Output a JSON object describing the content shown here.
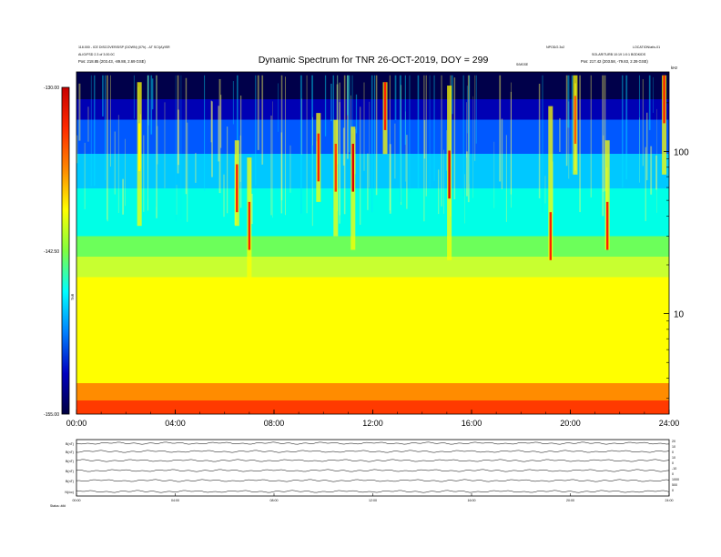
{
  "header": {
    "title": "Dynamic Spectrum for TNR 26-OCT-2019, DOY = 299",
    "left_line1": "118.000 - ICE DISCOVER/DSP (DOWN) (07h) - ΔT SCI(A)/ISR",
    "left_line2": "ALIG/FSD 2.3 of 3.00.0C",
    "left_line3": "Pos:  218.85 (203.43, -89.88, 2.69 GSE)",
    "right_mid": "NPOD/2.3x2",
    "right_top": "LOCATION/at/s-01",
    "right_line2": "SOLAR/TURB  10:19  1:0:1 BODKIDS",
    "right_line3": "Pos:  217.42 (203.58, -79.83, 2.39 GSE)",
    "center_small": "S/MGSE",
    "right_corner": "kHz"
  },
  "chart_data": {
    "type": "heatmap",
    "title": "Dynamic Spectrum for TNR 26-OCT-2019, DOY = 299",
    "x_tick_labels": [
      "00:00",
      "04:00",
      "08:00",
      "12:00",
      "16:00",
      "20:00",
      "24:00"
    ],
    "x_range_hours": [
      0,
      24
    ],
    "y_tick_labels": [
      "100",
      "10"
    ],
    "y_scale": "log",
    "colorbar": {
      "labels": [
        "-130.00",
        "-142.50",
        "-155.00"
      ],
      "axis_label": "TNR",
      "colors": [
        "#c80000",
        "#ff2a00",
        "#ff8800",
        "#ffff00",
        "#80ff40",
        "#00ffff",
        "#0080ff",
        "#0000c0",
        "#000040"
      ]
    },
    "background_bands": [
      {
        "color": "#ff3a00",
        "to": 0.04
      },
      {
        "color": "#ff8c00",
        "to": 0.09
      },
      {
        "color": "#ffff00",
        "to": 0.4
      },
      {
        "color": "#c8ff30",
        "to": 0.46
      },
      {
        "color": "#6cff5a",
        "to": 0.52
      },
      {
        "color": "#00ffe6",
        "to": 0.66
      },
      {
        "color": "#00c8ff",
        "to": 0.76
      },
      {
        "color": "#0058ff",
        "to": 0.86
      },
      {
        "color": "#0000b4",
        "to": 0.92
      },
      {
        "color": "#00004a",
        "to": 1.0
      }
    ],
    "bursts": [
      {
        "t": 2.55,
        "bot": 0.55,
        "top": 0.97,
        "peak": 0.78,
        "color": "#ffff00"
      },
      {
        "t": 6.5,
        "bot": 0.55,
        "top": 0.8,
        "peak": 0.66,
        "color": "#ff2000"
      },
      {
        "t": 7.0,
        "bot": 0.4,
        "top": 0.75,
        "peak": 0.55,
        "color": "#ff2000"
      },
      {
        "t": 9.8,
        "bot": 0.62,
        "top": 0.88,
        "peak": 0.75,
        "color": "#ff2000"
      },
      {
        "t": 10.5,
        "bot": 0.52,
        "top": 0.86,
        "peak": 0.72,
        "color": "#ff4000"
      },
      {
        "t": 11.2,
        "bot": 0.48,
        "top": 0.84,
        "peak": 0.72,
        "color": "#e00000"
      },
      {
        "t": 12.5,
        "bot": 0.76,
        "top": 0.97,
        "peak": 0.9,
        "color": "#ff2000"
      },
      {
        "t": 15.1,
        "bot": 0.45,
        "top": 0.96,
        "peak": 0.7,
        "color": "#e00000"
      },
      {
        "t": 19.2,
        "bot": 0.45,
        "top": 0.9,
        "peak": 0.52,
        "color": "#ff2000"
      },
      {
        "t": 20.2,
        "bot": 0.7,
        "top": 0.99,
        "peak": 0.86,
        "color": "#ff6000"
      },
      {
        "t": 21.5,
        "bot": 0.48,
        "top": 0.8,
        "peak": 0.55,
        "color": "#ff2000"
      },
      {
        "t": 23.8,
        "bot": 0.7,
        "top": 0.99,
        "peak": 0.93,
        "color": "#ff2000"
      }
    ]
  },
  "bottom_panel": {
    "row_labels": [
      "B(nT)",
      "B(nT)",
      "B(nT)",
      "B(nT)",
      "B(nT)",
      "N(/cc)"
    ],
    "right_ticks": [
      "20",
      "10",
      "0",
      "10",
      "0",
      "-10",
      "0",
      "1000",
      "500",
      "0"
    ],
    "x_tick_labels": [
      "00:00",
      "04:00",
      "08:00",
      "12:00",
      "16:00",
      "20:00",
      "24:00"
    ],
    "footer_label": "Status: ###"
  }
}
